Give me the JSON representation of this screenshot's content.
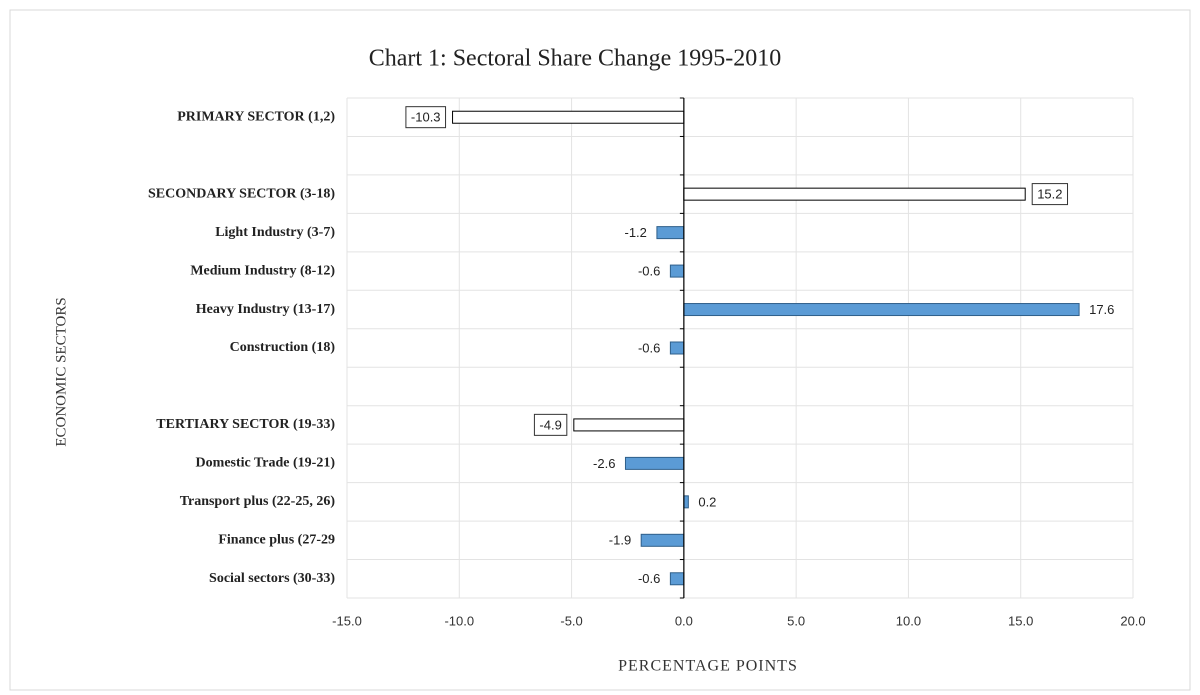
{
  "chart_data": {
    "type": "barh",
    "title": "Chart 1: Sectoral Share Change 1995-2010",
    "x_label": "PERCENTAGE POINTS",
    "y_label": "ECONOMIC SECTORS",
    "categories": [
      "PRIMARY SECTOR (1,2)",
      null,
      "SECONDARY SECTOR (3-18)",
      "Light Industry (3-7)",
      "Medium Industry (8-12)",
      "Heavy Industry (13-17)",
      "Construction (18)",
      null,
      "TERTIARY SECTOR (19-33)",
      "Domestic Trade (19-21)",
      "Transport plus (22-25, 26)",
      "Finance plus (27-29",
      "Social sectors (30-33)"
    ],
    "values": [
      -10.3,
      null,
      15.2,
      -1.2,
      -0.6,
      17.6,
      -0.6,
      null,
      -4.9,
      -2.6,
      0.2,
      -1.9,
      -0.6
    ],
    "colors": [
      "#ffffff",
      null,
      "#ffffff",
      "#5b9bd5",
      "#5b9bd5",
      "#5b9bd5",
      "#5b9bd5",
      null,
      "#ffffff",
      "#5b9bd5",
      "#5b9bd5",
      "#5b9bd5",
      "#5b9bd5"
    ],
    "xlim": [
      -15,
      20
    ],
    "xticks": [
      {
        "value": -15,
        "label": "-15.0"
      },
      {
        "value": -10,
        "label": "-10.0"
      },
      {
        "value": -5,
        "label": "-5.0"
      },
      {
        "value": 0,
        "label": "0.0"
      },
      {
        "value": 5,
        "label": "5.0"
      },
      {
        "value": 10,
        "label": "10.0"
      },
      {
        "value": 15,
        "label": "15.0"
      },
      {
        "value": 20,
        "label": "20.0"
      }
    ],
    "grid": true
  }
}
